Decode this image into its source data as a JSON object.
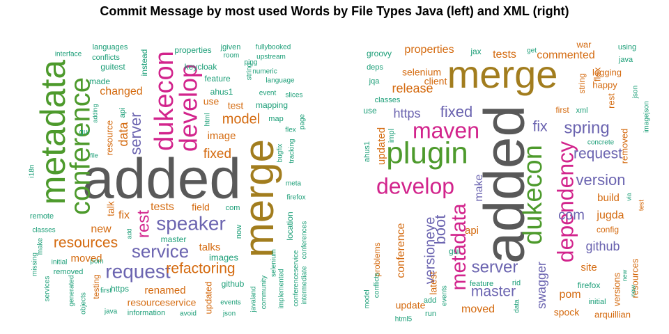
{
  "title": "Commit Message by most used Words by File Types Java (left) and XML (right)",
  "colors": {
    "gray": "#595959",
    "gold": "#A27D1E",
    "green": "#4D9A2C",
    "pink": "#D2248C",
    "purple": "#6B64B0",
    "orange": "#D46A0F",
    "teal": "#1B9E77"
  },
  "chart_data": [
    {
      "type": "wordcloud",
      "panel": "left",
      "words": [
        {
          "text": "added",
          "color": "gray"
        },
        {
          "text": "merge",
          "color": "gold"
        },
        {
          "text": "metadata",
          "color": "green"
        },
        {
          "text": "conference",
          "color": "green"
        },
        {
          "text": "dukecon",
          "color": "pink"
        },
        {
          "text": "develop",
          "color": "pink"
        },
        {
          "text": "speaker",
          "color": "purple"
        },
        {
          "text": "request",
          "color": "purple"
        },
        {
          "text": "service",
          "color": "purple"
        },
        {
          "text": "resources",
          "color": "orange"
        },
        {
          "text": "refactoring",
          "color": "orange"
        },
        {
          "text": "server",
          "color": "purple"
        },
        {
          "text": "rest",
          "color": "pink"
        },
        {
          "text": "model",
          "color": "orange"
        },
        {
          "text": "fixed",
          "color": "orange"
        },
        {
          "text": "tests",
          "color": "orange"
        },
        {
          "text": "changed",
          "color": "orange"
        },
        {
          "text": "data",
          "color": "orange"
        },
        {
          "text": "resource",
          "color": "orange"
        },
        {
          "text": "image",
          "color": "orange"
        },
        {
          "text": "test",
          "color": "orange"
        },
        {
          "text": "use",
          "color": "orange"
        },
        {
          "text": "new",
          "color": "orange"
        },
        {
          "text": "moved",
          "color": "orange"
        },
        {
          "text": "talks",
          "color": "orange"
        },
        {
          "text": "talk",
          "color": "orange"
        },
        {
          "text": "fix",
          "color": "orange"
        },
        {
          "text": "field",
          "color": "orange"
        },
        {
          "text": "renamed",
          "color": "orange"
        },
        {
          "text": "resourceservice",
          "color": "orange"
        },
        {
          "text": "testing",
          "color": "orange"
        },
        {
          "text": "updated",
          "color": "orange"
        },
        {
          "text": "made",
          "color": "teal"
        },
        {
          "text": "guitest",
          "color": "teal"
        },
        {
          "text": "instead",
          "color": "teal"
        },
        {
          "text": "properties",
          "color": "teal"
        },
        {
          "text": "keycloak",
          "color": "teal"
        },
        {
          "text": "feature",
          "color": "teal"
        },
        {
          "text": "ahus1",
          "color": "teal"
        },
        {
          "text": "mapping",
          "color": "teal"
        },
        {
          "text": "map",
          "color": "teal"
        },
        {
          "text": "languages",
          "color": "teal"
        },
        {
          "text": "conflicts",
          "color": "teal"
        },
        {
          "text": "interface",
          "color": "teal"
        },
        {
          "text": "jgiven",
          "color": "teal"
        },
        {
          "text": "room",
          "color": "teal"
        },
        {
          "text": "fullybooked",
          "color": "teal"
        },
        {
          "text": "upstream",
          "color": "teal"
        },
        {
          "text": "ping",
          "color": "teal"
        },
        {
          "text": "numeric",
          "color": "teal"
        },
        {
          "text": "language",
          "color": "teal"
        },
        {
          "text": "event",
          "color": "teal"
        },
        {
          "text": "slices",
          "color": "teal"
        },
        {
          "text": "flex",
          "color": "teal"
        },
        {
          "text": "meta",
          "color": "teal"
        },
        {
          "text": "firefox",
          "color": "teal"
        },
        {
          "text": "location",
          "color": "teal"
        },
        {
          "text": "com",
          "color": "teal"
        },
        {
          "text": "now",
          "color": "teal"
        },
        {
          "text": "images",
          "color": "teal"
        },
        {
          "text": "github",
          "color": "teal"
        },
        {
          "text": "events",
          "color": "teal"
        },
        {
          "text": "json",
          "color": "teal"
        },
        {
          "text": "master",
          "color": "teal"
        },
        {
          "text": "https",
          "color": "teal"
        },
        {
          "text": "information",
          "color": "teal"
        },
        {
          "text": "avoid",
          "color": "teal"
        },
        {
          "text": "remote",
          "color": "teal"
        },
        {
          "text": "classes",
          "color": "teal"
        },
        {
          "text": "initial",
          "color": "teal"
        },
        {
          "text": "removed",
          "color": "teal"
        },
        {
          "text": "missing",
          "color": "teal"
        },
        {
          "text": "services",
          "color": "teal"
        },
        {
          "text": "generated",
          "color": "teal"
        },
        {
          "text": "objects",
          "color": "teal"
        },
        {
          "text": "pom",
          "color": "teal"
        },
        {
          "text": "first",
          "color": "teal"
        },
        {
          "text": "java",
          "color": "teal"
        },
        {
          "text": "i18n",
          "color": "teal"
        },
        {
          "text": "gui",
          "color": "teal"
        },
        {
          "text": "file",
          "color": "teal"
        },
        {
          "text": "adding",
          "color": "teal"
        },
        {
          "text": "api",
          "color": "teal"
        },
        {
          "text": "add",
          "color": "teal"
        },
        {
          "text": "make",
          "color": "teal"
        },
        {
          "text": "html",
          "color": "teal"
        },
        {
          "text": "string",
          "color": "teal"
        },
        {
          "text": "bugfix",
          "color": "teal"
        },
        {
          "text": "tracking",
          "color": "teal"
        },
        {
          "text": "page",
          "color": "teal"
        },
        {
          "text": "conferences",
          "color": "teal"
        },
        {
          "text": "conferenceservice",
          "color": "teal"
        },
        {
          "text": "intermediate",
          "color": "teal"
        },
        {
          "text": "implemented",
          "color": "teal"
        },
        {
          "text": "selenium",
          "color": "teal"
        },
        {
          "text": "community",
          "color": "teal"
        },
        {
          "text": "javaland",
          "color": "teal"
        }
      ]
    },
    {
      "type": "wordcloud",
      "panel": "right",
      "words": [
        {
          "text": "added",
          "color": "gray"
        },
        {
          "text": "merge",
          "color": "gold"
        },
        {
          "text": "plugin",
          "color": "green"
        },
        {
          "text": "dukecon",
          "color": "green"
        },
        {
          "text": "develop",
          "color": "pink"
        },
        {
          "text": "maven",
          "color": "pink"
        },
        {
          "text": "dependency",
          "color": "pink"
        },
        {
          "text": "metadata",
          "color": "pink"
        },
        {
          "text": "spring",
          "color": "purple"
        },
        {
          "text": "request",
          "color": "purple"
        },
        {
          "text": "version",
          "color": "purple"
        },
        {
          "text": "server",
          "color": "purple"
        },
        {
          "text": "master",
          "color": "purple"
        },
        {
          "text": "fixed",
          "color": "purple"
        },
        {
          "text": "fix",
          "color": "purple"
        },
        {
          "text": "com",
          "color": "purple"
        },
        {
          "text": "boot",
          "color": "purple"
        },
        {
          "text": "versioneye",
          "color": "purple"
        },
        {
          "text": "swagger",
          "color": "purple"
        },
        {
          "text": "github",
          "color": "purple"
        },
        {
          "text": "make",
          "color": "purple"
        },
        {
          "text": "https",
          "color": "purple"
        },
        {
          "text": "release",
          "color": "orange"
        },
        {
          "text": "tests",
          "color": "orange"
        },
        {
          "text": "commented",
          "color": "orange"
        },
        {
          "text": "properties",
          "color": "orange"
        },
        {
          "text": "selenium",
          "color": "orange"
        },
        {
          "text": "client",
          "color": "orange"
        },
        {
          "text": "updated",
          "color": "orange"
        },
        {
          "text": "conference",
          "color": "orange"
        },
        {
          "text": "problems",
          "color": "orange"
        },
        {
          "text": "latest",
          "color": "orange"
        },
        {
          "text": "api",
          "color": "orange"
        },
        {
          "text": "moved",
          "color": "orange"
        },
        {
          "text": "update",
          "color": "orange"
        },
        {
          "text": "pom",
          "color": "orange"
        },
        {
          "text": "spock",
          "color": "orange"
        },
        {
          "text": "arquillian",
          "color": "orange"
        },
        {
          "text": "site",
          "color": "orange"
        },
        {
          "text": "build",
          "color": "orange"
        },
        {
          "text": "jugda",
          "color": "orange"
        },
        {
          "text": "versions",
          "color": "orange"
        },
        {
          "text": "resources",
          "color": "orange"
        },
        {
          "text": "removed",
          "color": "orange"
        },
        {
          "text": "logging",
          "color": "orange"
        },
        {
          "text": "happy",
          "color": "orange"
        },
        {
          "text": "flex",
          "color": "orange"
        },
        {
          "text": "rest",
          "color": "orange"
        },
        {
          "text": "war",
          "color": "orange"
        },
        {
          "text": "string",
          "color": "orange"
        },
        {
          "text": "first",
          "color": "orange"
        },
        {
          "text": "config",
          "color": "orange"
        },
        {
          "text": "test",
          "color": "orange"
        },
        {
          "text": "groovy",
          "color": "teal"
        },
        {
          "text": "deps",
          "color": "teal"
        },
        {
          "text": "jqa",
          "color": "teal"
        },
        {
          "text": "classes",
          "color": "teal"
        },
        {
          "text": "use",
          "color": "teal"
        },
        {
          "text": "impl",
          "color": "teal"
        },
        {
          "text": "ahus1",
          "color": "teal"
        },
        {
          "text": "conflicts",
          "color": "teal"
        },
        {
          "text": "model",
          "color": "teal"
        },
        {
          "text": "html5",
          "color": "teal"
        },
        {
          "text": "add",
          "color": "teal"
        },
        {
          "text": "run",
          "color": "teal"
        },
        {
          "text": "gui",
          "color": "teal"
        },
        {
          "text": "events",
          "color": "teal"
        },
        {
          "text": "feature",
          "color": "teal"
        },
        {
          "text": "data",
          "color": "teal"
        },
        {
          "text": "rid",
          "color": "teal"
        },
        {
          "text": "jax",
          "color": "teal"
        },
        {
          "text": "get",
          "color": "teal"
        },
        {
          "text": "using",
          "color": "teal"
        },
        {
          "text": "java",
          "color": "teal"
        },
        {
          "text": "json",
          "color": "teal"
        },
        {
          "text": "imagejson",
          "color": "teal"
        },
        {
          "text": "xml",
          "color": "teal"
        },
        {
          "text": "concrete",
          "color": "teal"
        },
        {
          "text": "firefox",
          "color": "teal"
        },
        {
          "text": "initial",
          "color": "teal"
        },
        {
          "text": "new",
          "color": "teal"
        },
        {
          "text": "now",
          "color": "teal"
        },
        {
          "text": "via",
          "color": "teal"
        }
      ]
    }
  ]
}
